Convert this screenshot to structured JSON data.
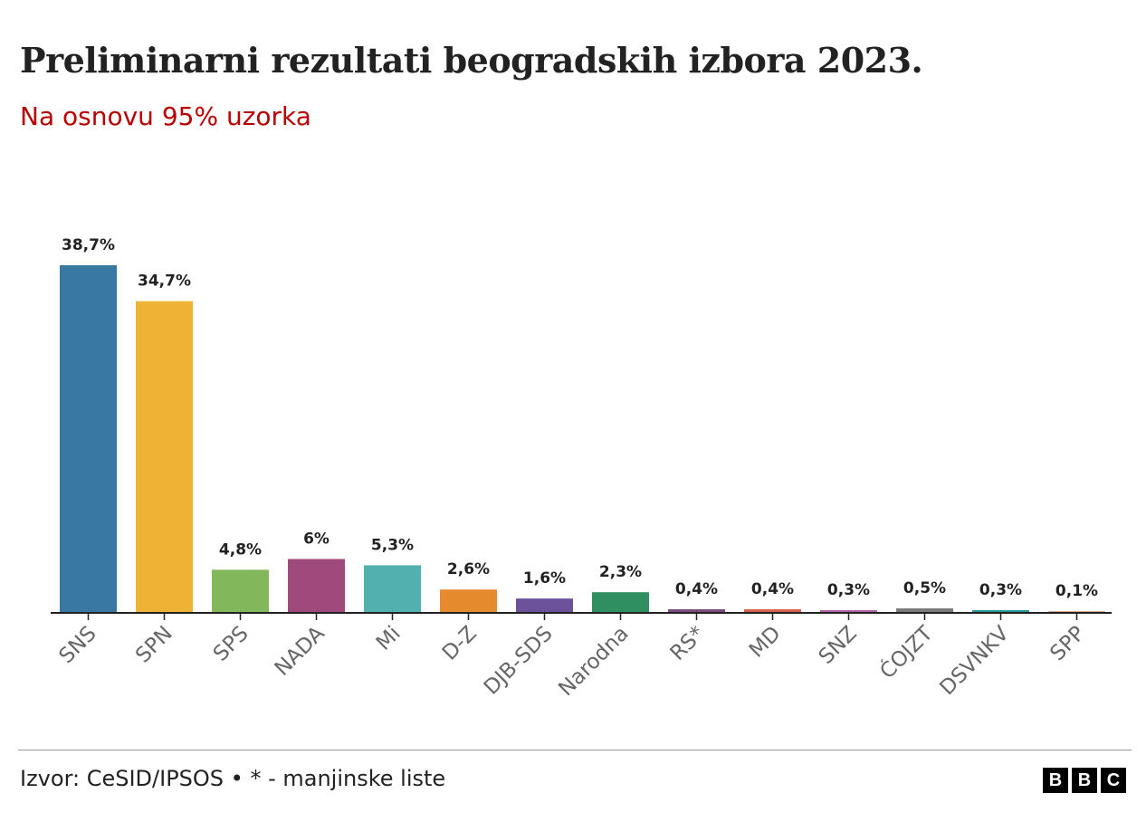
{
  "header": {
    "title": "Preliminarni rezultati beogradskih izbora 2023.",
    "subtitle": "Na osnovu 95% uzorka"
  },
  "footer": {
    "source": "Izvor: CeSID/IPSOS • * - manjinske liste",
    "logo": "BBC"
  },
  "chart_data": {
    "type": "bar",
    "title": "Preliminarni rezultati beogradskih izbora 2023.",
    "subtitle": "Na osnovu 95% uzorka",
    "xlabel": "",
    "ylabel": "",
    "ylim": [
      0,
      38.7
    ],
    "grid": false,
    "categories": [
      "SNS",
      "SPN",
      "SPS",
      "NADA",
      "Mi",
      "D-Z",
      "DJB-SDS",
      "Narodna",
      "RS*",
      "MD",
      "SNZ",
      "ĆOJZT",
      "DSVNKV",
      "SPP"
    ],
    "values": [
      38.7,
      34.7,
      4.8,
      6,
      5.3,
      2.6,
      1.6,
      2.3,
      0.4,
      0.4,
      0.3,
      0.5,
      0.3,
      0.1
    ],
    "labels": [
      "38,7%",
      "34,7%",
      "4,8%",
      "6%",
      "5,3%",
      "2,6%",
      "1,6%",
      "2,3%",
      "0,4%",
      "0,4%",
      "0,3%",
      "0,5%",
      "0,3%",
      "0,1%"
    ],
    "colors": [
      "#3878a2",
      "#eeb335",
      "#82b75c",
      "#a0497c",
      "#52b0ae",
      "#e68a2e",
      "#6c519b",
      "#2f8f60",
      "#7b4a80",
      "#d9604c",
      "#b05ea6",
      "#7a7a7a",
      "#2b9591",
      "#d4a98a"
    ]
  }
}
